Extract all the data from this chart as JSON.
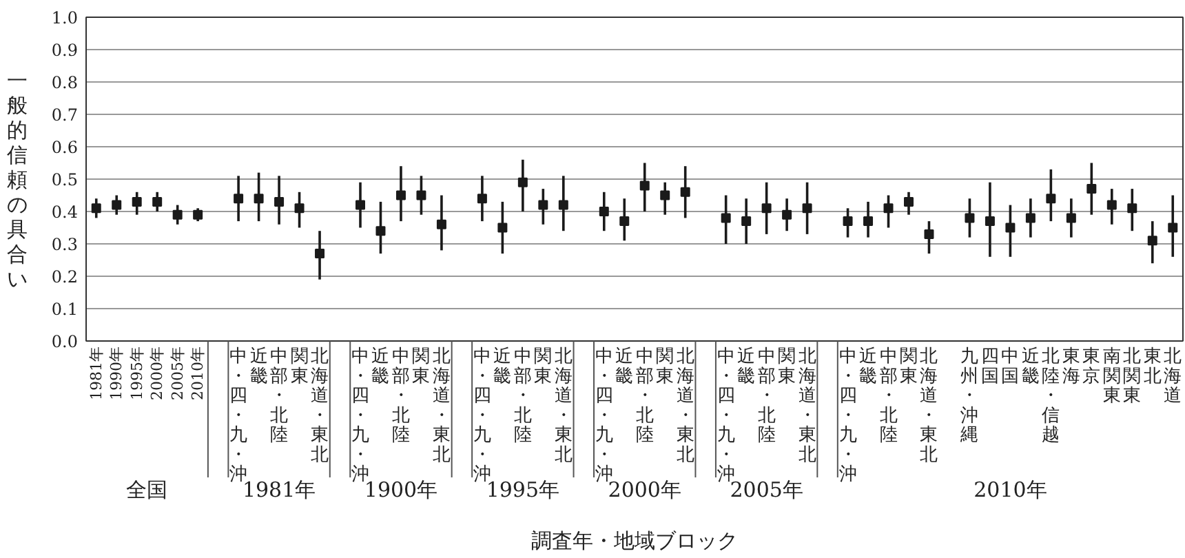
{
  "chart_data": {
    "type": "scatter",
    "xlabel": "調査年・地域ブロック",
    "ylabel": "一般的信頼の具合い",
    "categories": [
      "1981年",
      "1990年",
      "1995年",
      "2000年",
      "2005年",
      "2010年",
      null,
      "中・四・九・沖",
      "近畿",
      "中部・北陸",
      "関東",
      "北海道・東北",
      null,
      "中・四・九・沖",
      "近畿",
      "中部・北陸",
      "関東",
      "北海道・東北",
      null,
      "中・四・九・沖",
      "近畿",
      "中部・北陸",
      "関東",
      "北海道・東北",
      null,
      "中・四・九・沖",
      "近畿",
      "中部・北陸",
      "関東",
      "北海道・東北",
      null,
      "中・四・九・沖",
      "近畿",
      "中部・北陸",
      "関東",
      "北海道・東北",
      null,
      "中・四・九・沖",
      "近畿",
      "中部・北陸",
      "関東",
      "北海道・東北",
      null,
      "九州・沖縄",
      "四国",
      "中国",
      "近畿",
      "北陸・信越",
      "東海",
      "東京",
      "南関東",
      "北関東",
      "東北",
      "北海道"
    ],
    "annotations": [
      "全国",
      "1981年",
      "1900年",
      "1995年",
      "2000年",
      "2005年",
      "2010年"
    ],
    "series": [
      {
        "color": "#1a1a1a",
        "values": [
          0.41,
          0.42,
          0.43,
          0.43,
          0.39,
          0.39,
          null,
          0.44,
          0.44,
          0.43,
          0.41,
          0.27,
          null,
          0.42,
          0.34,
          0.45,
          0.45,
          0.36,
          null,
          0.44,
          0.35,
          0.49,
          0.42,
          0.42,
          null,
          0.4,
          0.37,
          0.48,
          0.45,
          0.46,
          null,
          0.38,
          0.37,
          0.41,
          0.39,
          0.41,
          null,
          0.37,
          0.37,
          0.41,
          0.43,
          0.33,
          null,
          0.38,
          0.37,
          0.35,
          0.38,
          0.44,
          0.38,
          0.47,
          0.42,
          0.41,
          0.31,
          0.35
        ],
        "errors": [
          [
            0.38,
            0.44
          ],
          [
            0.39,
            0.45
          ],
          [
            0.39,
            0.46
          ],
          [
            0.4,
            0.46
          ],
          [
            0.36,
            0.42
          ],
          [
            0.37,
            0.41
          ],
          null,
          [
            0.37,
            0.51
          ],
          [
            0.37,
            0.52
          ],
          [
            0.36,
            0.51
          ],
          [
            0.35,
            0.46
          ],
          [
            0.19,
            0.34
          ],
          null,
          [
            0.35,
            0.49
          ],
          [
            0.27,
            0.43
          ],
          [
            0.37,
            0.54
          ],
          [
            0.39,
            0.51
          ],
          [
            0.28,
            0.45
          ],
          null,
          [
            0.37,
            0.51
          ],
          [
            0.27,
            0.43
          ],
          [
            0.4,
            0.56
          ],
          [
            0.36,
            0.47
          ],
          [
            0.34,
            0.51
          ],
          null,
          [
            0.34,
            0.46
          ],
          [
            0.31,
            0.44
          ],
          [
            0.4,
            0.55
          ],
          [
            0.39,
            0.49
          ],
          [
            0.38,
            0.54
          ],
          null,
          [
            0.3,
            0.45
          ],
          [
            0.3,
            0.44
          ],
          [
            0.33,
            0.49
          ],
          [
            0.34,
            0.44
          ],
          [
            0.33,
            0.49
          ],
          null,
          [
            0.32,
            0.41
          ],
          [
            0.32,
            0.43
          ],
          [
            0.35,
            0.45
          ],
          [
            0.39,
            0.46
          ],
          [
            0.27,
            0.37
          ],
          null,
          [
            0.32,
            0.44
          ],
          [
            0.26,
            0.49
          ],
          [
            0.26,
            0.42
          ],
          [
            0.32,
            0.44
          ],
          [
            0.37,
            0.53
          ],
          [
            0.32,
            0.44
          ],
          [
            0.39,
            0.55
          ],
          [
            0.36,
            0.47
          ],
          [
            0.34,
            0.47
          ],
          [
            0.24,
            0.37
          ],
          [
            0.26,
            0.45
          ]
        ]
      }
    ],
    "ylim": [
      0,
      1
    ],
    "yticks": [
      {
        "value": 0,
        "label": "0.0"
      },
      0.1,
      0.2,
      0.3,
      0.4,
      0.5,
      0.6,
      0.7,
      0.8,
      0.9,
      {
        "value": 1,
        "label": "1.0"
      }
    ],
    "grid": "y",
    "marker": "square"
  }
}
